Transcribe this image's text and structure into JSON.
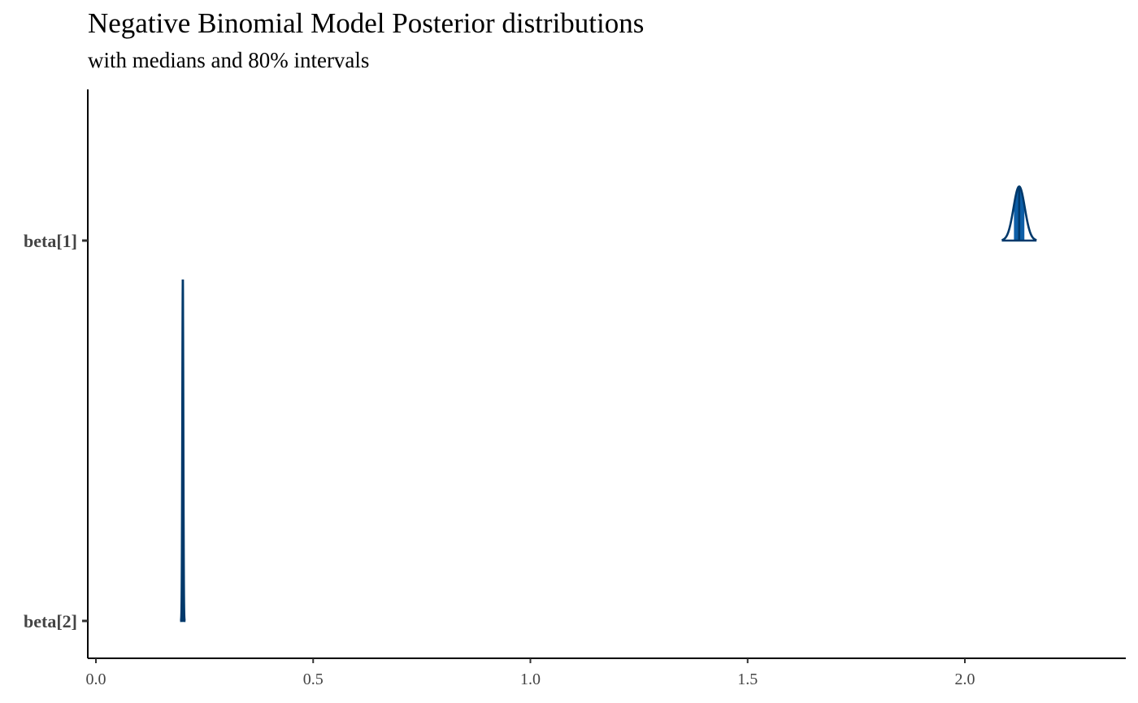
{
  "chart_data": {
    "type": "area",
    "title": "Negative Binomial Model Posterior distributions",
    "subtitle": "with medians and 80% intervals",
    "xlabel": "",
    "ylabel": "",
    "xlim": [
      -0.02,
      2.36
    ],
    "x_ticks": [
      {
        "value": 0.0,
        "label": "0.0"
      },
      {
        "value": 0.5,
        "label": "0.5"
      },
      {
        "value": 1.0,
        "label": "1.0"
      },
      {
        "value": 1.5,
        "label": "1.5"
      },
      {
        "value": 2.0,
        "label": "2.0"
      }
    ],
    "y_categories": [
      "beta[1]",
      "beta[2]"
    ],
    "grid": false,
    "colors": {
      "outline": "#00396b",
      "interval_fill": "#0d5ea7",
      "median_line": "#00396b",
      "axis": "#000000",
      "tick_label": "#444444"
    },
    "series": [
      {
        "parameter": "beta[1]",
        "median": 2.125,
        "interval_80": [
          2.113,
          2.137
        ],
        "mean": 2.125,
        "sd": 0.013,
        "density_extent": [
          2.085,
          2.165
        ]
      },
      {
        "parameter": "beta[2]",
        "median": 0.2,
        "interval_80": [
          0.199,
          0.201
        ],
        "mean": 0.2,
        "sd": 0.0012,
        "density_extent": [
          0.194,
          0.206
        ]
      }
    ]
  }
}
